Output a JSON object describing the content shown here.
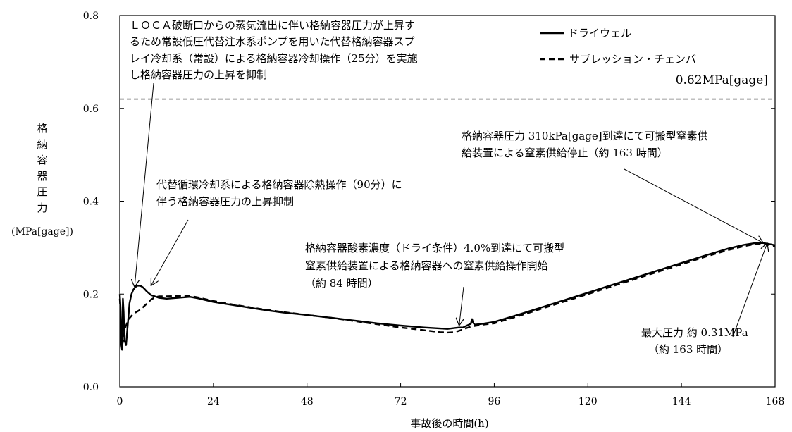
{
  "chart_data": {
    "type": "line",
    "xlabel": "事故後の時間(h)",
    "ylabel_chars": [
      "格",
      "納",
      "容",
      "器",
      "圧",
      "力"
    ],
    "ylabel_unit": "(MPa[gage])",
    "xlim": [
      0,
      168
    ],
    "ylim": [
      0.0,
      0.8
    ],
    "xticks": [
      0,
      24,
      48,
      72,
      96,
      120,
      144,
      168
    ],
    "xtick_labels": [
      "0",
      "24",
      "48",
      "72",
      "96",
      "120",
      "144",
      "168"
    ],
    "yticks": [
      0.0,
      0.2,
      0.4,
      0.6,
      0.8
    ],
    "ytick_labels": [
      "0.0",
      "0.2",
      "0.4",
      "0.6",
      "0.8"
    ],
    "grid": false,
    "legend_position": "top-right",
    "series": [
      {
        "name": "ドライウェル",
        "style": "solid",
        "color": "#000000",
        "x": [
          0,
          0.2,
          0.4,
          0.6,
          0.8,
          1.0,
          1.2,
          1.4,
          1.6,
          1.8,
          2.0,
          2.2,
          2.5,
          3.0,
          3.5,
          4.0,
          4.5,
          5.0,
          5.5,
          6.0,
          7.0,
          8.0,
          9.0,
          10.0,
          12.0,
          15.0,
          18.0,
          20.0,
          24.0,
          30.0,
          36.0,
          42.0,
          48.0,
          54.0,
          60.0,
          66.0,
          72.0,
          78.0,
          84.0,
          86.0,
          87.0,
          88.0,
          89.0,
          90.0,
          90.3,
          90.6,
          91.0,
          93.0,
          96.0,
          102.0,
          108.0,
          114.0,
          120.0,
          126.0,
          132.0,
          138.0,
          144.0,
          150.0,
          156.0,
          160.0,
          163.0,
          165.0,
          167.0,
          168.0
        ],
        "y": [
          0.2,
          0.17,
          0.09,
          0.08,
          0.19,
          0.16,
          0.1,
          0.095,
          0.09,
          0.11,
          0.13,
          0.15,
          0.18,
          0.2,
          0.21,
          0.215,
          0.218,
          0.218,
          0.217,
          0.214,
          0.205,
          0.198,
          0.195,
          0.192,
          0.19,
          0.192,
          0.194,
          0.191,
          0.183,
          0.175,
          0.167,
          0.16,
          0.155,
          0.149,
          0.143,
          0.137,
          0.132,
          0.128,
          0.125,
          0.127,
          0.128,
          0.128,
          0.132,
          0.136,
          0.146,
          0.138,
          0.134,
          0.136,
          0.14,
          0.155,
          0.171,
          0.187,
          0.203,
          0.219,
          0.235,
          0.251,
          0.267,
          0.283,
          0.298,
          0.306,
          0.31,
          0.31,
          0.307,
          0.305
        ]
      },
      {
        "name": "サプレッション・チェンバ",
        "style": "dashed",
        "color": "#000000",
        "x": [
          0,
          0.3,
          0.6,
          0.9,
          1.2,
          1.5,
          2.0,
          2.5,
          3.0,
          4.0,
          5.0,
          6.0,
          7.0,
          8.0,
          9.0,
          10.0,
          12.0,
          15.0,
          18.0,
          20.0,
          24.0,
          30.0,
          36.0,
          42.0,
          48.0,
          54.0,
          60.0,
          66.0,
          72.0,
          78.0,
          82.0,
          84.0,
          86.0,
          88.0,
          90.0,
          93.0,
          96.0,
          102.0,
          108.0,
          114.0,
          120.0,
          126.0,
          132.0,
          138.0,
          144.0,
          150.0,
          156.0,
          160.0,
          163.0,
          165.0,
          167.0,
          168.0
        ],
        "y": [
          0.19,
          0.14,
          0.09,
          0.1,
          0.12,
          0.13,
          0.14,
          0.148,
          0.153,
          0.16,
          0.165,
          0.172,
          0.18,
          0.188,
          0.193,
          0.195,
          0.195,
          0.196,
          0.196,
          0.193,
          0.185,
          0.176,
          0.168,
          0.161,
          0.155,
          0.149,
          0.142,
          0.135,
          0.128,
          0.122,
          0.118,
          0.117,
          0.118,
          0.124,
          0.13,
          0.134,
          0.137,
          0.152,
          0.168,
          0.184,
          0.2,
          0.216,
          0.232,
          0.248,
          0.264,
          0.28,
          0.295,
          0.303,
          0.308,
          0.308,
          0.305,
          0.303
        ]
      }
    ],
    "reference_line": {
      "y": 0.62,
      "label": "0.62MPa[gage]",
      "style": "dashed"
    },
    "annotations": [
      {
        "id": "ann1",
        "lines": [
          "ＬＯＣＡ破断口からの蒸気流出に伴い格納容器圧力が上昇す",
          "るため常設低圧代替注水系ポンプを用いた代替格納容器スプ",
          "レイ冷却系（常設）による格納容器冷却操作（25分）を実施",
          "し格納容器圧力の上昇を抑制"
        ],
        "arrow_target": [
          3.8,
          0.215
        ]
      },
      {
        "id": "ann2",
        "lines": [
          "代替循環冷却系による格納容器除熱操作（90分）に",
          "伴う格納容器圧力の上昇抑制"
        ],
        "arrow_target": [
          8.0,
          0.218
        ]
      },
      {
        "id": "ann3",
        "lines": [
          "格納容器酸素濃度（ドライ条件）4.0%到達にて可搬型",
          "窒素供給装置による格納容器への窒素供給操作開始",
          "（約 84 時間）"
        ],
        "arrow_target": [
          87.0,
          0.132
        ]
      },
      {
        "id": "ann4",
        "lines": [
          "格納容器圧力 310kPa[gage]到達にて可搬型窒素供",
          "給装置による窒素供給停止（約 163 時間）"
        ],
        "arrow_target": [
          165.0,
          0.31
        ]
      },
      {
        "id": "ann5",
        "lines": [
          "最大圧力 約 0.31MPa",
          "（約 163 時間）"
        ],
        "arrow_target": [
          166.0,
          0.31
        ]
      }
    ]
  }
}
